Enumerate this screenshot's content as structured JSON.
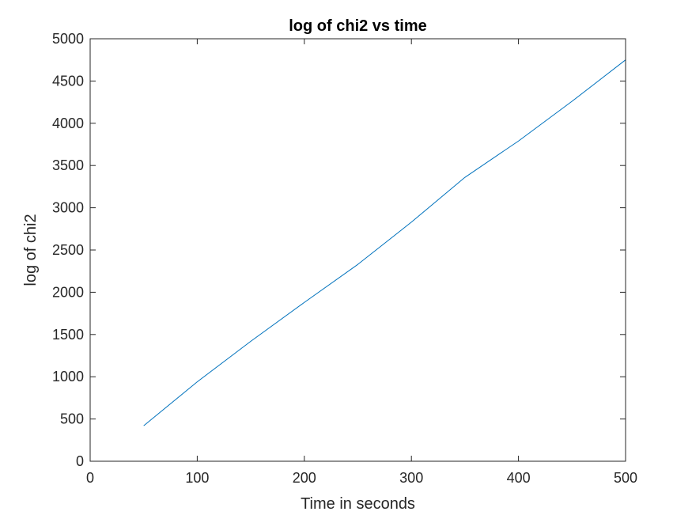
{
  "chart_data": {
    "type": "line",
    "title": "log of chi2 vs time",
    "xlabel": "Time in seconds",
    "ylabel": "log of chi2",
    "xlim": [
      0,
      500
    ],
    "ylim": [
      0,
      5000
    ],
    "xticks": [
      0,
      100,
      200,
      300,
      400,
      500
    ],
    "yticks": [
      0,
      500,
      1000,
      1500,
      2000,
      2500,
      3000,
      3500,
      4000,
      4500,
      5000
    ],
    "xtick_labels": [
      "0",
      "100",
      "200",
      "300",
      "400",
      "500"
    ],
    "ytick_labels": [
      "0",
      "500",
      "1000",
      "1500",
      "2000",
      "2500",
      "3000",
      "3500",
      "4000",
      "4500",
      "5000"
    ],
    "grid": false,
    "box": true,
    "series": [
      {
        "color": "#0072bd",
        "x": [
          50,
          100,
          150,
          200,
          250,
          300,
          350,
          400,
          450,
          500
        ],
        "y": [
          420,
          940,
          1420,
          1880,
          2330,
          2830,
          3360,
          3790,
          4260,
          4750
        ]
      }
    ]
  }
}
